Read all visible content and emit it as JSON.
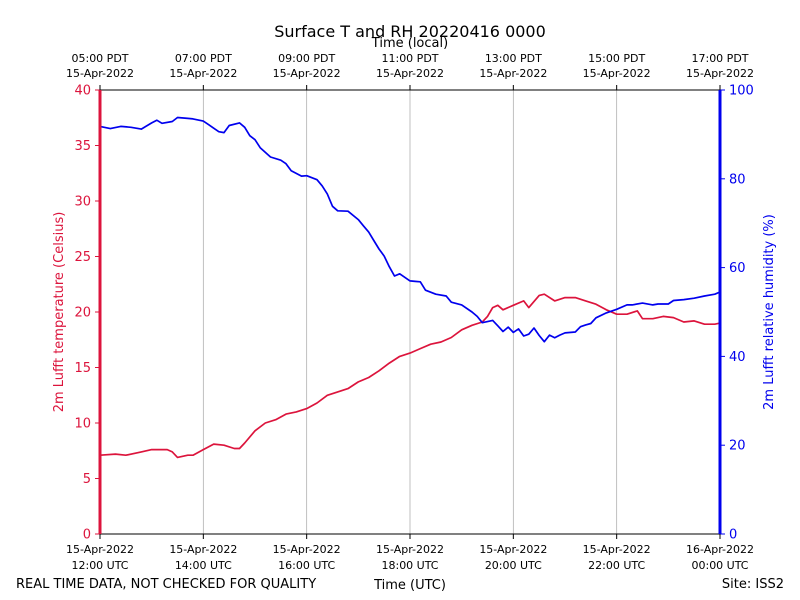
{
  "chart_data": {
    "type": "line",
    "title": "Surface T and RH 20220416 0000",
    "top_axis_label": "Time (local)",
    "xlabel": "Time (UTC)",
    "ylabel_left": "2m Lufft temperature (Celsius)",
    "ylabel_right": "2m Lufft relative humidity (%)",
    "footer_left": "REAL TIME DATA, NOT CHECKED FOR QUALITY",
    "footer_right": "Site: ISS2",
    "xlim_hours": [
      0,
      12
    ],
    "ylim_left": [
      0,
      40
    ],
    "ylim_right": [
      0,
      100
    ],
    "left_ticks": [
      0,
      5,
      10,
      15,
      20,
      25,
      30,
      35,
      40
    ],
    "right_ticks": [
      0,
      20,
      40,
      60,
      80,
      100
    ],
    "x_ticks": [
      {
        "hour": 0,
        "date": "15-Apr-2022",
        "utc": "12:00 UTC",
        "local": "05:00 PDT",
        "local_date": "15-Apr-2022"
      },
      {
        "hour": 2,
        "date": "15-Apr-2022",
        "utc": "14:00 UTC",
        "local": "07:00 PDT",
        "local_date": "15-Apr-2022"
      },
      {
        "hour": 4,
        "date": "15-Apr-2022",
        "utc": "16:00 UTC",
        "local": "09:00 PDT",
        "local_date": "15-Apr-2022"
      },
      {
        "hour": 6,
        "date": "15-Apr-2022",
        "utc": "18:00 UTC",
        "local": "11:00 PDT",
        "local_date": "15-Apr-2022"
      },
      {
        "hour": 8,
        "date": "15-Apr-2022",
        "utc": "20:00 UTC",
        "local": "13:00 PDT",
        "local_date": "15-Apr-2022"
      },
      {
        "hour": 10,
        "date": "15-Apr-2022",
        "utc": "22:00 UTC",
        "local": "15:00 PDT",
        "local_date": "15-Apr-2022"
      },
      {
        "hour": 12,
        "date": "16-Apr-2022",
        "utc": "00:00 UTC",
        "local": "17:00 PDT",
        "local_date": "15-Apr-2022"
      }
    ],
    "grid": "vertical",
    "series": [
      {
        "name": "Temperature",
        "axis": "left",
        "color": "#dc143c",
        "points": [
          [
            0.0,
            7.1
          ],
          [
            0.3,
            7.2
          ],
          [
            0.5,
            7.1
          ],
          [
            0.8,
            7.4
          ],
          [
            1.0,
            7.6
          ],
          [
            1.3,
            7.6
          ],
          [
            1.4,
            7.4
          ],
          [
            1.5,
            6.9
          ],
          [
            1.7,
            7.1
          ],
          [
            1.8,
            7.1
          ],
          [
            2.0,
            7.6
          ],
          [
            2.2,
            8.1
          ],
          [
            2.4,
            8.0
          ],
          [
            2.6,
            7.7
          ],
          [
            2.7,
            7.7
          ],
          [
            2.8,
            8.2
          ],
          [
            3.0,
            9.3
          ],
          [
            3.2,
            10.0
          ],
          [
            3.4,
            10.3
          ],
          [
            3.6,
            10.8
          ],
          [
            3.8,
            11.0
          ],
          [
            4.0,
            11.3
          ],
          [
            4.2,
            11.8
          ],
          [
            4.4,
            12.5
          ],
          [
            4.6,
            12.8
          ],
          [
            4.8,
            13.1
          ],
          [
            5.0,
            13.7
          ],
          [
            5.2,
            14.1
          ],
          [
            5.4,
            14.7
          ],
          [
            5.6,
            15.4
          ],
          [
            5.8,
            16.0
          ],
          [
            6.0,
            16.3
          ],
          [
            6.2,
            16.7
          ],
          [
            6.4,
            17.1
          ],
          [
            6.6,
            17.3
          ],
          [
            6.8,
            17.7
          ],
          [
            7.0,
            18.4
          ],
          [
            7.2,
            18.8
          ],
          [
            7.4,
            19.1
          ],
          [
            7.5,
            19.6
          ],
          [
            7.6,
            20.4
          ],
          [
            7.7,
            20.6
          ],
          [
            7.8,
            20.2
          ],
          [
            8.0,
            20.6
          ],
          [
            8.2,
            21.0
          ],
          [
            8.3,
            20.4
          ],
          [
            8.5,
            21.5
          ],
          [
            8.6,
            21.6
          ],
          [
            8.8,
            21.0
          ],
          [
            9.0,
            21.3
          ],
          [
            9.2,
            21.3
          ],
          [
            9.4,
            21.0
          ],
          [
            9.6,
            20.7
          ],
          [
            9.8,
            20.2
          ],
          [
            10.0,
            19.8
          ],
          [
            10.2,
            19.8
          ],
          [
            10.4,
            20.1
          ],
          [
            10.5,
            19.4
          ],
          [
            10.7,
            19.4
          ],
          [
            10.9,
            19.6
          ],
          [
            11.1,
            19.5
          ],
          [
            11.3,
            19.1
          ],
          [
            11.5,
            19.2
          ],
          [
            11.7,
            18.9
          ],
          [
            11.9,
            18.9
          ],
          [
            12.0,
            19.0
          ]
        ]
      },
      {
        "name": "Relative humidity",
        "axis": "right",
        "color": "#0000ee",
        "points": [
          [
            0.0,
            91.8
          ],
          [
            0.2,
            91.3
          ],
          [
            0.4,
            91.8
          ],
          [
            0.6,
            91.6
          ],
          [
            0.8,
            91.2
          ],
          [
            1.0,
            92.6
          ],
          [
            1.1,
            93.2
          ],
          [
            1.2,
            92.5
          ],
          [
            1.4,
            92.9
          ],
          [
            1.5,
            93.8
          ],
          [
            1.7,
            93.6
          ],
          [
            1.8,
            93.5
          ],
          [
            2.0,
            93.0
          ],
          [
            2.1,
            92.2
          ],
          [
            2.3,
            90.6
          ],
          [
            2.4,
            90.4
          ],
          [
            2.5,
            92.0
          ],
          [
            2.7,
            92.6
          ],
          [
            2.8,
            91.6
          ],
          [
            2.9,
            89.7
          ],
          [
            3.0,
            88.8
          ],
          [
            3.1,
            87.0
          ],
          [
            3.3,
            84.9
          ],
          [
            3.5,
            84.2
          ],
          [
            3.6,
            83.4
          ],
          [
            3.7,
            81.8
          ],
          [
            3.9,
            80.6
          ],
          [
            4.0,
            80.7
          ],
          [
            4.2,
            79.8
          ],
          [
            4.3,
            78.4
          ],
          [
            4.4,
            76.6
          ],
          [
            4.5,
            73.8
          ],
          [
            4.6,
            72.8
          ],
          [
            4.8,
            72.7
          ],
          [
            5.0,
            70.8
          ],
          [
            5.1,
            69.4
          ],
          [
            5.2,
            68.0
          ],
          [
            5.3,
            66.1
          ],
          [
            5.4,
            64.2
          ],
          [
            5.5,
            62.6
          ],
          [
            5.6,
            60.2
          ],
          [
            5.7,
            58.1
          ],
          [
            5.8,
            58.6
          ],
          [
            6.0,
            57.0
          ],
          [
            6.1,
            56.9
          ],
          [
            6.2,
            56.8
          ],
          [
            6.3,
            54.9
          ],
          [
            6.5,
            54.0
          ],
          [
            6.7,
            53.6
          ],
          [
            6.8,
            52.2
          ],
          [
            7.0,
            51.6
          ],
          [
            7.2,
            50.0
          ],
          [
            7.3,
            49.0
          ],
          [
            7.4,
            47.6
          ],
          [
            7.6,
            48.1
          ],
          [
            7.7,
            46.9
          ],
          [
            7.8,
            45.6
          ],
          [
            7.9,
            46.6
          ],
          [
            8.0,
            45.4
          ],
          [
            8.1,
            46.2
          ],
          [
            8.2,
            44.6
          ],
          [
            8.3,
            45.0
          ],
          [
            8.4,
            46.4
          ],
          [
            8.5,
            44.7
          ],
          [
            8.6,
            43.3
          ],
          [
            8.7,
            44.8
          ],
          [
            8.8,
            44.2
          ],
          [
            8.9,
            44.8
          ],
          [
            9.0,
            45.3
          ],
          [
            9.2,
            45.5
          ],
          [
            9.3,
            46.7
          ],
          [
            9.4,
            47.1
          ],
          [
            9.5,
            47.4
          ],
          [
            9.6,
            48.7
          ],
          [
            9.8,
            49.8
          ],
          [
            10.0,
            50.6
          ],
          [
            10.2,
            51.6
          ],
          [
            10.3,
            51.6
          ],
          [
            10.5,
            52.0
          ],
          [
            10.7,
            51.6
          ],
          [
            10.8,
            51.8
          ],
          [
            11.0,
            51.8
          ],
          [
            11.1,
            52.6
          ],
          [
            11.3,
            52.8
          ],
          [
            11.5,
            53.1
          ],
          [
            11.7,
            53.6
          ],
          [
            11.9,
            54.0
          ],
          [
            12.0,
            54.5
          ]
        ]
      }
    ]
  }
}
